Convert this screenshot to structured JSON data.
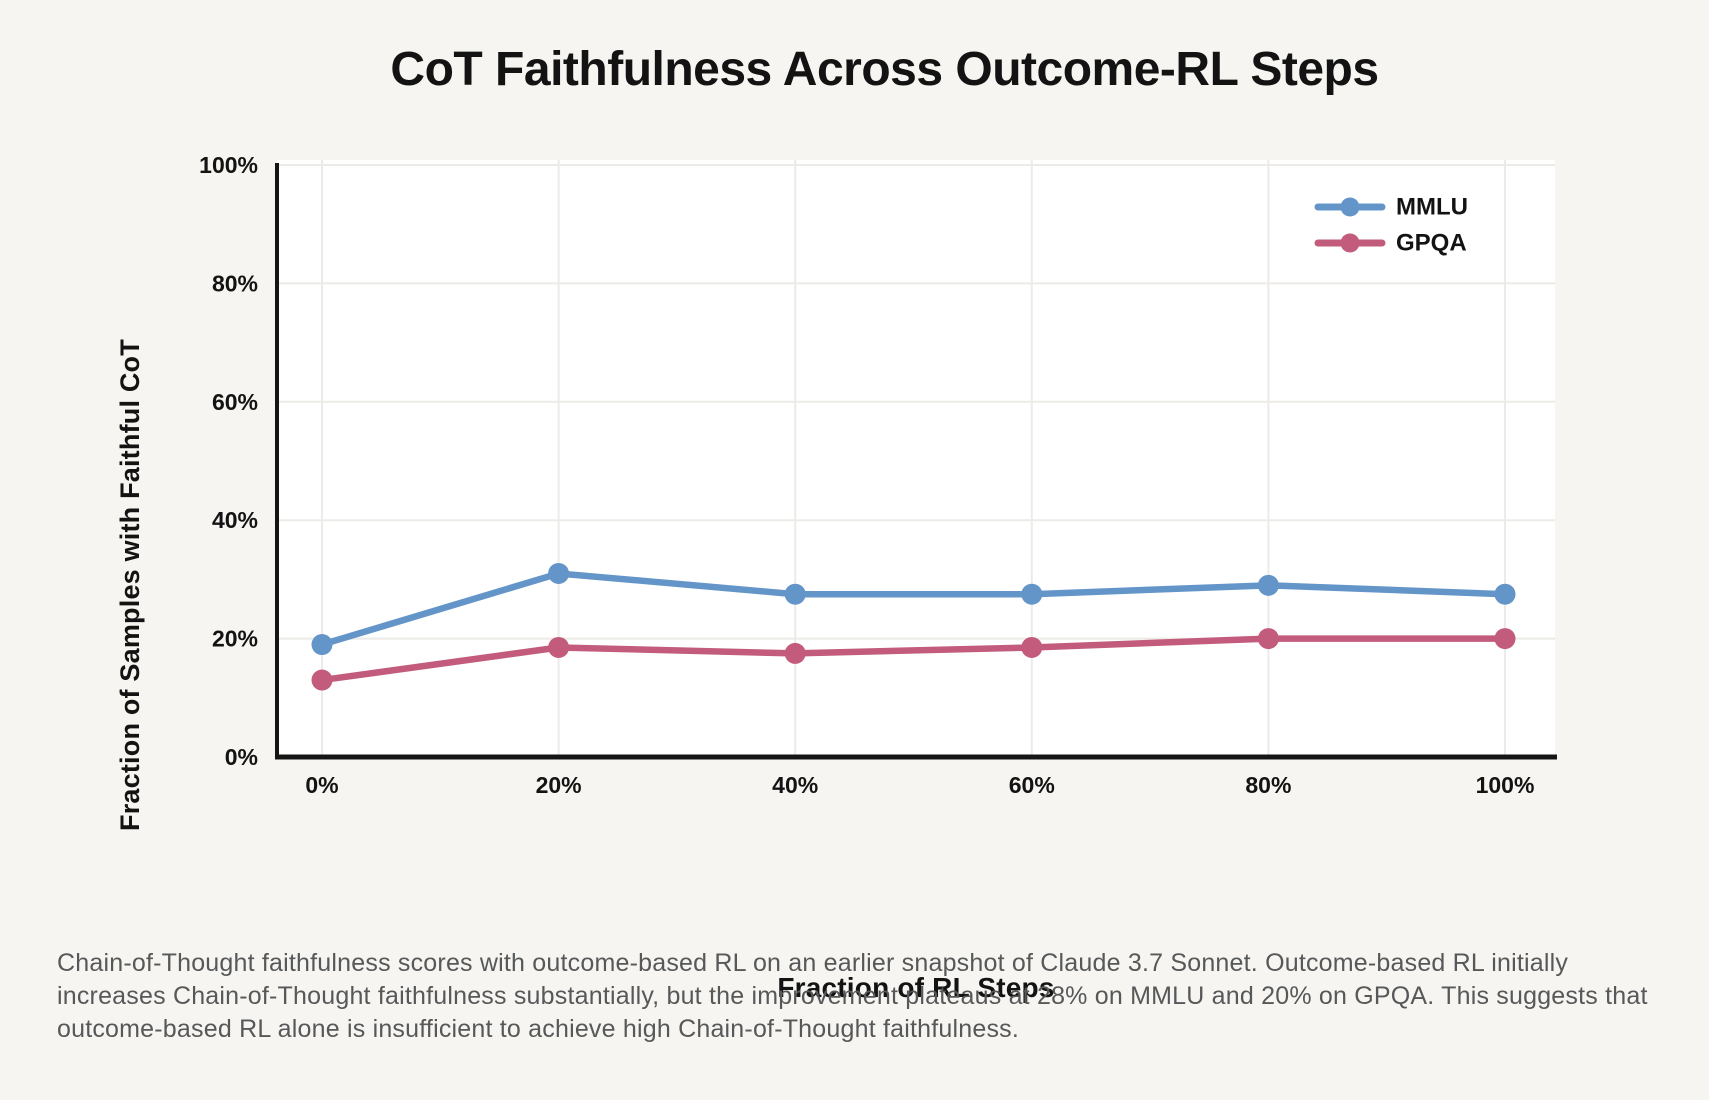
{
  "caption": "Chain-of-Thought faithfulness scores with outcome-based RL on an earlier snapshot of Claude 3.7 Sonnet. Outcome-based RL initially increases Chain-of-Thought faithfulness substantially, but the improvement plateaus at 28% on MMLU and 20% on GPQA. This suggests that outcome-based RL alone is insufficient to achieve high Chain-of-Thought faithfulness.",
  "colors": {
    "background": "#f6f5f1",
    "plot_background": "#ffffff",
    "gridline": "#edebe8",
    "axis": "#151515",
    "text": "#131313",
    "caption_text": "#565859",
    "mmlu_blue": "#6495c8",
    "gpqa_rose": "#c25b7c"
  },
  "chart_data": {
    "type": "line",
    "title": "CoT Faithfulness Across Outcome-RL Steps",
    "xlabel": "Fraction of RL Steps",
    "ylabel": "Fraction of Samples with Faithful CoT",
    "x": [
      0,
      20,
      40,
      60,
      80,
      100
    ],
    "x_tick_labels": [
      "0%",
      "20%",
      "40%",
      "60%",
      "80%",
      "100%"
    ],
    "y_ticks": [
      0,
      20,
      40,
      60,
      80,
      100
    ],
    "y_tick_labels": [
      "0%",
      "20%",
      "40%",
      "60%",
      "80%",
      "100%"
    ],
    "ylim": [
      0,
      100
    ],
    "grid": true,
    "legend_position": "top-right",
    "series": [
      {
        "name": "MMLU",
        "color": "#6495c8",
        "values": [
          19,
          31,
          27.5,
          27.5,
          29,
          27.5
        ]
      },
      {
        "name": "GPQA",
        "color": "#c25b7c",
        "values": [
          13,
          18.5,
          17.5,
          18.5,
          20,
          20
        ]
      }
    ]
  }
}
